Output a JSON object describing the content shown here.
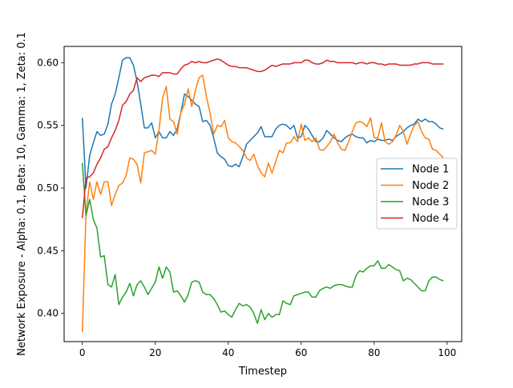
{
  "chart_data": {
    "type": "line",
    "title": "",
    "xlabel": "Timestep",
    "ylabel": "Network Exposure - Alpha: 0.1, Beta: 10, Gamma: 1, Zeta: 0.1",
    "xlim": [
      -5,
      104
    ],
    "ylim": [
      0.3775,
      0.613
    ],
    "xticks": [
      0,
      20,
      40,
      60,
      80,
      100
    ],
    "xtick_labels": [
      "0",
      "20",
      "40",
      "60",
      "80",
      "100"
    ],
    "yticks": [
      0.4,
      0.45,
      0.5,
      0.55,
      0.6
    ],
    "ytick_labels": [
      "0.40",
      "0.45",
      "0.50",
      "0.55",
      "0.60"
    ],
    "grid": false,
    "legend": "center-right",
    "series": [
      {
        "name": "Node 1",
        "color": "#1f77b4",
        "x": [
          0,
          1,
          2,
          3,
          4,
          5,
          6,
          7,
          8,
          9,
          10,
          11,
          12,
          13,
          14,
          15,
          16,
          17,
          18,
          19,
          20,
          21,
          22,
          23,
          24,
          25,
          26,
          27,
          28,
          29,
          30,
          31,
          32,
          33,
          34,
          35,
          36,
          37,
          38,
          39,
          40,
          41,
          42,
          43,
          44,
          45,
          46,
          47,
          48,
          49,
          50,
          51,
          52,
          53,
          54,
          55,
          56,
          57,
          58,
          59,
          60,
          61,
          62,
          63,
          64,
          65,
          66,
          67,
          68,
          69,
          70,
          71,
          72,
          73,
          74,
          75,
          76,
          77,
          78,
          79,
          80,
          81,
          82,
          83,
          84,
          85,
          86,
          87,
          88,
          89,
          90,
          91,
          92,
          93,
          94,
          95,
          96,
          97,
          98,
          99
        ],
        "y": [
          0.556,
          0.5,
          0.526,
          0.536,
          0.545,
          0.542,
          0.543,
          0.551,
          0.567,
          0.575,
          0.588,
          0.602,
          0.604,
          0.604,
          0.598,
          0.585,
          0.567,
          0.548,
          0.548,
          0.552,
          0.54,
          0.545,
          0.54,
          0.54,
          0.545,
          0.542,
          0.547,
          0.56,
          0.575,
          0.573,
          0.57,
          0.567,
          0.565,
          0.553,
          0.554,
          0.55,
          0.54,
          0.528,
          0.525,
          0.523,
          0.518,
          0.517,
          0.519,
          0.517,
          0.525,
          0.535,
          0.538,
          0.541,
          0.544,
          0.549,
          0.541,
          0.541,
          0.541,
          0.547,
          0.55,
          0.551,
          0.55,
          0.547,
          0.55,
          0.54,
          0.541,
          0.55,
          0.547,
          0.542,
          0.537,
          0.537,
          0.54,
          0.546,
          0.543,
          0.54,
          0.538,
          0.537,
          0.54,
          0.542,
          0.543,
          0.541,
          0.54,
          0.54,
          0.536,
          0.538,
          0.537,
          0.539,
          0.538,
          0.538,
          0.539,
          0.538,
          0.541,
          0.543,
          0.545,
          0.548,
          0.55,
          0.551,
          0.555,
          0.553,
          0.555,
          0.553,
          0.553,
          0.551,
          0.548,
          0.547
        ]
      },
      {
        "name": "Node 2",
        "color": "#ff7f0e",
        "x": [
          0,
          1,
          2,
          3,
          4,
          5,
          6,
          7,
          8,
          9,
          10,
          11,
          12,
          13,
          14,
          15,
          16,
          17,
          18,
          19,
          20,
          21,
          22,
          23,
          24,
          25,
          26,
          27,
          28,
          29,
          30,
          31,
          32,
          33,
          34,
          35,
          36,
          37,
          38,
          39,
          40,
          41,
          42,
          43,
          44,
          45,
          46,
          47,
          48,
          49,
          50,
          51,
          52,
          53,
          54,
          55,
          56,
          57,
          58,
          59,
          60,
          61,
          62,
          63,
          64,
          65,
          66,
          67,
          68,
          69,
          70,
          71,
          72,
          73,
          74,
          75,
          76,
          77,
          78,
          79,
          80,
          81,
          82,
          83,
          84,
          85,
          86,
          87,
          88,
          89,
          90,
          91,
          92,
          93,
          94,
          95,
          96,
          97,
          98,
          99
        ],
        "y": [
          0.385,
          0.48,
          0.505,
          0.491,
          0.505,
          0.495,
          0.505,
          0.505,
          0.486,
          0.495,
          0.502,
          0.504,
          0.51,
          0.524,
          0.523,
          0.519,
          0.504,
          0.528,
          0.529,
          0.53,
          0.527,
          0.546,
          0.572,
          0.581,
          0.555,
          0.553,
          0.543,
          0.56,
          0.567,
          0.579,
          0.565,
          0.578,
          0.588,
          0.59,
          0.573,
          0.56,
          0.543,
          0.55,
          0.549,
          0.554,
          0.54,
          0.537,
          0.536,
          0.533,
          0.53,
          0.524,
          0.522,
          0.527,
          0.518,
          0.512,
          0.509,
          0.52,
          0.512,
          0.521,
          0.53,
          0.528,
          0.536,
          0.536,
          0.541,
          0.537,
          0.551,
          0.538,
          0.54,
          0.537,
          0.54,
          0.531,
          0.53,
          0.533,
          0.537,
          0.543,
          0.536,
          0.531,
          0.53,
          0.537,
          0.545,
          0.552,
          0.553,
          0.552,
          0.549,
          0.556,
          0.54,
          0.54,
          0.552,
          0.537,
          0.535,
          0.537,
          0.542,
          0.55,
          0.545,
          0.535,
          0.543,
          0.55,
          0.553,
          0.545,
          0.54,
          0.539,
          0.531,
          0.53,
          0.527,
          0.524
        ]
      },
      {
        "name": "Node 3",
        "color": "#2ca02c",
        "x": [
          0,
          1,
          2,
          3,
          4,
          5,
          6,
          7,
          8,
          9,
          10,
          11,
          12,
          13,
          14,
          15,
          16,
          17,
          18,
          19,
          20,
          21,
          22,
          23,
          24,
          25,
          26,
          27,
          28,
          29,
          30,
          31,
          32,
          33,
          34,
          35,
          36,
          37,
          38,
          39,
          40,
          41,
          42,
          43,
          44,
          45,
          46,
          47,
          48,
          49,
          50,
          51,
          52,
          53,
          54,
          55,
          56,
          57,
          58,
          59,
          60,
          61,
          62,
          63,
          64,
          65,
          66,
          67,
          68,
          69,
          70,
          71,
          72,
          73,
          74,
          75,
          76,
          77,
          78,
          79,
          80,
          81,
          82,
          83,
          84,
          85,
          86,
          87,
          88,
          89,
          90,
          91,
          92,
          93,
          94,
          95,
          96,
          97,
          98,
          99
        ],
        "y": [
          0.52,
          0.478,
          0.491,
          0.475,
          0.468,
          0.445,
          0.446,
          0.423,
          0.421,
          0.431,
          0.407,
          0.413,
          0.417,
          0.424,
          0.414,
          0.423,
          0.426,
          0.421,
          0.415,
          0.42,
          0.425,
          0.437,
          0.428,
          0.437,
          0.433,
          0.417,
          0.418,
          0.414,
          0.409,
          0.415,
          0.425,
          0.426,
          0.425,
          0.417,
          0.415,
          0.415,
          0.412,
          0.407,
          0.401,
          0.402,
          0.399,
          0.397,
          0.403,
          0.408,
          0.406,
          0.407,
          0.405,
          0.4,
          0.392,
          0.403,
          0.395,
          0.4,
          0.397,
          0.399,
          0.399,
          0.41,
          0.408,
          0.407,
          0.414,
          0.415,
          0.416,
          0.417,
          0.417,
          0.413,
          0.413,
          0.418,
          0.42,
          0.421,
          0.42,
          0.422,
          0.423,
          0.423,
          0.422,
          0.421,
          0.421,
          0.43,
          0.434,
          0.433,
          0.436,
          0.438,
          0.438,
          0.442,
          0.436,
          0.436,
          0.439,
          0.437,
          0.435,
          0.434,
          0.426,
          0.428,
          0.427,
          0.424,
          0.421,
          0.418,
          0.418,
          0.426,
          0.429,
          0.429,
          0.427,
          0.426
        ]
      },
      {
        "name": "Node 4",
        "color": "#d62728",
        "x": [
          0,
          1,
          2,
          3,
          4,
          5,
          6,
          7,
          8,
          9,
          10,
          11,
          12,
          13,
          14,
          15,
          16,
          17,
          18,
          19,
          20,
          21,
          22,
          23,
          24,
          25,
          26,
          27,
          28,
          29,
          30,
          31,
          32,
          33,
          34,
          35,
          36,
          37,
          38,
          39,
          40,
          41,
          42,
          43,
          44,
          45,
          46,
          47,
          48,
          49,
          50,
          51,
          52,
          53,
          54,
          55,
          56,
          57,
          58,
          59,
          60,
          61,
          62,
          63,
          64,
          65,
          66,
          67,
          68,
          69,
          70,
          71,
          72,
          73,
          74,
          75,
          76,
          77,
          78,
          79,
          80,
          81,
          82,
          83,
          84,
          85,
          86,
          87,
          88,
          89,
          90,
          91,
          92,
          93,
          94,
          95,
          96,
          97,
          98,
          99
        ],
        "y": [
          0.476,
          0.508,
          0.509,
          0.512,
          0.519,
          0.524,
          0.531,
          0.533,
          0.54,
          0.546,
          0.554,
          0.566,
          0.569,
          0.575,
          0.578,
          0.588,
          0.585,
          0.588,
          0.589,
          0.59,
          0.59,
          0.589,
          0.592,
          0.592,
          0.592,
          0.591,
          0.591,
          0.595,
          0.598,
          0.599,
          0.601,
          0.6,
          0.601,
          0.6,
          0.6,
          0.601,
          0.602,
          0.603,
          0.602,
          0.6,
          0.598,
          0.597,
          0.597,
          0.596,
          0.596,
          0.596,
          0.595,
          0.594,
          0.593,
          0.593,
          0.594,
          0.596,
          0.598,
          0.597,
          0.598,
          0.599,
          0.599,
          0.599,
          0.6,
          0.6,
          0.6,
          0.602,
          0.602,
          0.6,
          0.599,
          0.599,
          0.6,
          0.602,
          0.601,
          0.601,
          0.6,
          0.6,
          0.6,
          0.6,
          0.6,
          0.599,
          0.6,
          0.6,
          0.599,
          0.6,
          0.6,
          0.599,
          0.599,
          0.598,
          0.599,
          0.599,
          0.599,
          0.598,
          0.598,
          0.598,
          0.598,
          0.599,
          0.599,
          0.6,
          0.6,
          0.6,
          0.599,
          0.599,
          0.599,
          0.599
        ]
      }
    ]
  }
}
